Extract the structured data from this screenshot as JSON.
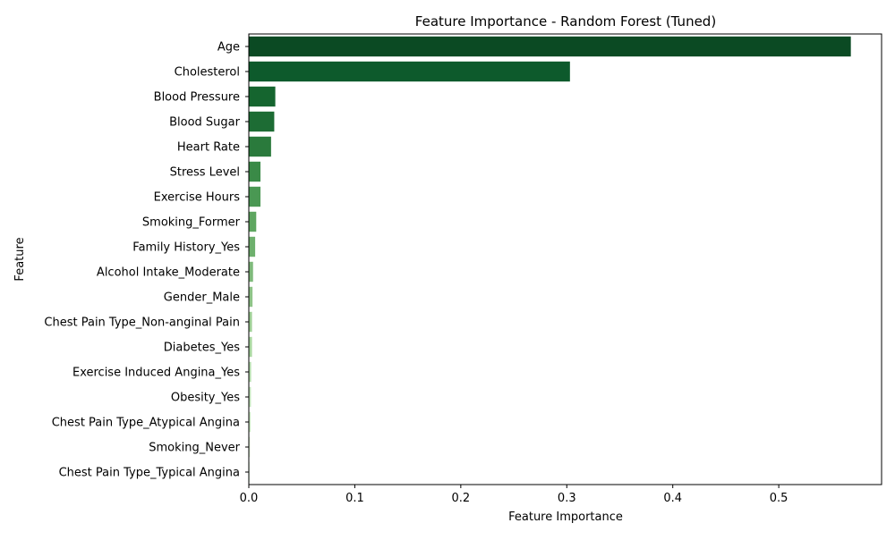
{
  "chart_data": {
    "type": "bar",
    "orientation": "horizontal",
    "title": "Feature Importance - Random Forest (Tuned)",
    "xlabel": "Feature Importance",
    "ylabel": "Feature",
    "xlim": [
      0,
      0.597
    ],
    "xticks": [
      0.0,
      0.1,
      0.2,
      0.3,
      0.4,
      0.5
    ],
    "xtick_labels": [
      "0.0",
      "0.1",
      "0.2",
      "0.3",
      "0.4",
      "0.5"
    ],
    "grid": false,
    "legend": "none",
    "categories": [
      "Age",
      "Cholesterol",
      "Blood Pressure",
      "Blood Sugar",
      "Heart Rate",
      "Stress Level",
      "Exercise Hours",
      "Smoking_Former",
      "Family History_Yes",
      "Alcohol Intake_Moderate",
      "Gender_Male",
      "Chest Pain Type_Non-anginal Pain",
      "Diabetes_Yes",
      "Exercise Induced Angina_Yes",
      "Obesity_Yes",
      "Chest Pain Type_Atypical Angina",
      "Smoking_Never",
      "Chest Pain Type_Typical Angina"
    ],
    "values": [
      0.568,
      0.303,
      0.025,
      0.024,
      0.021,
      0.011,
      0.011,
      0.007,
      0.006,
      0.004,
      0.0035,
      0.003,
      0.003,
      0.0022,
      0.002,
      0.0018,
      0.0012,
      0.0008
    ],
    "colors": [
      "#0b4a23",
      "#0d5a2c",
      "#15652f",
      "#1d6c34",
      "#2a7a3c",
      "#3a8a47",
      "#4a9853",
      "#5ea660",
      "#6eb06d",
      "#7fba7b",
      "#8fc488",
      "#9ecf95",
      "#a9d7a0",
      "#b6deae",
      "#c3e5bb",
      "#cfebc8",
      "#dbf0d5",
      "#e6f5e1"
    ]
  }
}
